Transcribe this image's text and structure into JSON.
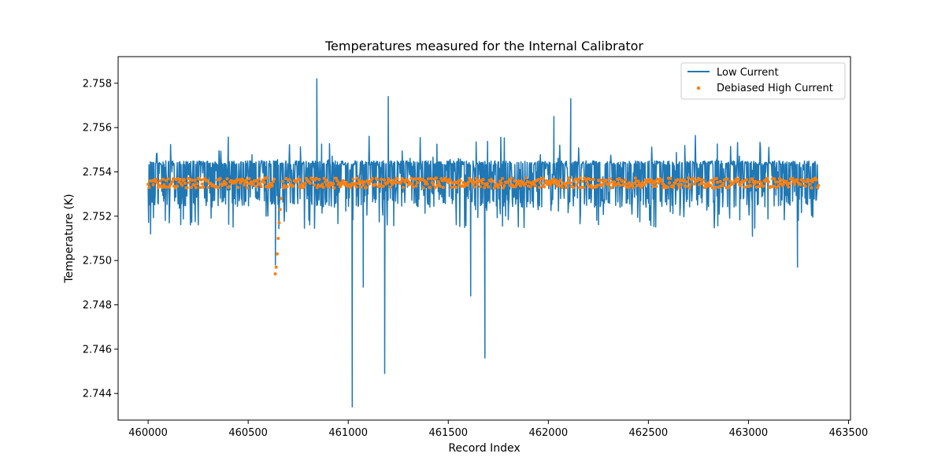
{
  "chart_data": {
    "type": "line",
    "title": "Temperatures measured for the Internal Calibrator",
    "xlabel": "Record Index",
    "ylabel": "Temperature (K)",
    "xlim": [
      459850,
      463510
    ],
    "ylim": [
      2.7428,
      2.7592
    ],
    "xticks": [
      460000,
      460500,
      461000,
      461500,
      462000,
      462500,
      463000,
      463500
    ],
    "xtick_labels": [
      "460000",
      "460500",
      "461000",
      "461500",
      "462000",
      "462500",
      "463000",
      "463500"
    ],
    "yticks": [
      2.744,
      2.746,
      2.748,
      2.75,
      2.752,
      2.754,
      2.756,
      2.758
    ],
    "ytick_labels": [
      "2.744",
      "2.746",
      "2.748",
      "2.750",
      "2.752",
      "2.754",
      "2.756",
      "2.758"
    ],
    "grid": false,
    "legend_position": "top-right",
    "x_range": [
      460000,
      463350
    ],
    "series": [
      {
        "name": "Low Current",
        "kind": "line",
        "color": "#1f77b4",
        "baseline": 2.7536,
        "band_high": 2.7545,
        "band_low": 2.7528,
        "spikes": [
          {
            "x": 460012,
            "y": 2.7512
          },
          {
            "x": 460636,
            "y": 2.7498
          },
          {
            "x": 460843,
            "y": 2.7582
          },
          {
            "x": 461020,
            "y": 2.7434
          },
          {
            "x": 461075,
            "y": 2.7488
          },
          {
            "x": 461182,
            "y": 2.7449
          },
          {
            "x": 461200,
            "y": 2.7574
          },
          {
            "x": 461612,
            "y": 2.7484
          },
          {
            "x": 461683,
            "y": 2.7456
          },
          {
            "x": 462028,
            "y": 2.7565
          },
          {
            "x": 462112,
            "y": 2.7573
          },
          {
            "x": 463245,
            "y": 2.7497
          },
          {
            "x": 463020,
            "y": 2.7511
          }
        ]
      },
      {
        "name": "Debiased High Current",
        "kind": "scatter",
        "color": "#ff7f0e",
        "baseline": 2.7535,
        "dip": [
          {
            "x": 460635,
            "y": 2.7494
          },
          {
            "x": 460640,
            "y": 2.7497
          },
          {
            "x": 460645,
            "y": 2.7503
          },
          {
            "x": 460650,
            "y": 2.751
          },
          {
            "x": 460655,
            "y": 2.7517
          },
          {
            "x": 460660,
            "y": 2.7523
          },
          {
            "x": 460665,
            "y": 2.7528
          }
        ]
      }
    ]
  }
}
